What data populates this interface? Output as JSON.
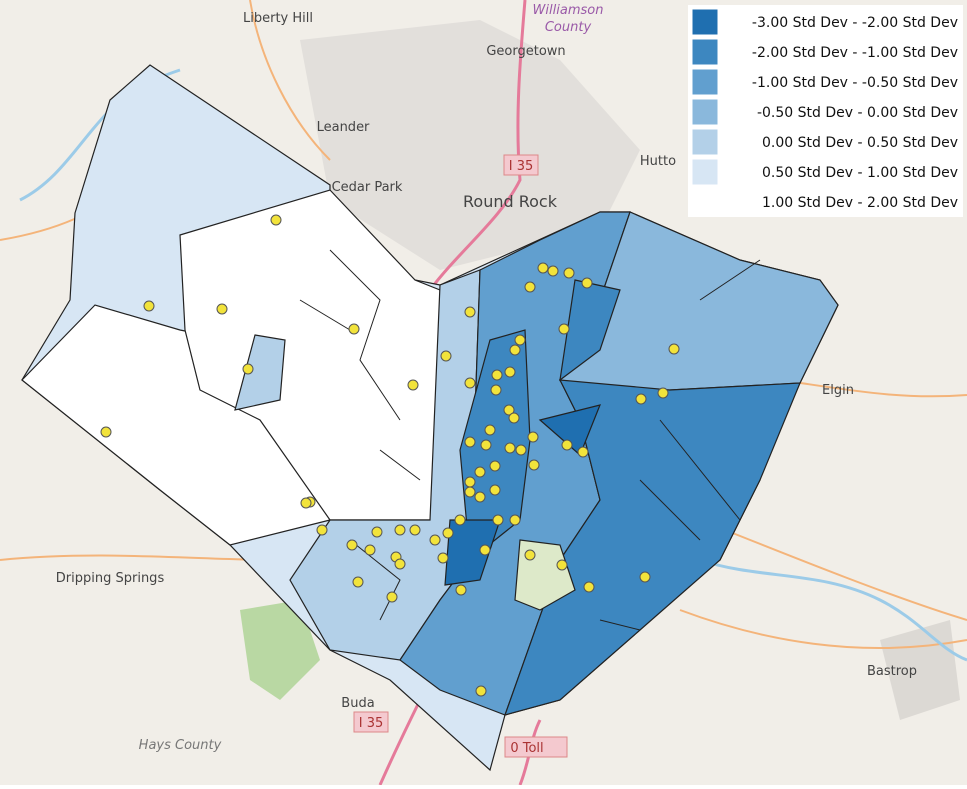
{
  "map": {
    "legend": [
      {
        "label": "-3.00 Std Dev -  -2.00 Std Dev",
        "color": "#1f6fb0"
      },
      {
        "label": "-2.00 Std Dev -  -1.00 Std Dev",
        "color": "#3d87c0"
      },
      {
        "label": "-1.00 Std Dev -  -0.50 Std Dev",
        "color": "#619fcf"
      },
      {
        "label": "-0.50 Std Dev -  0.00 Std Dev",
        "color": "#8ab8dc"
      },
      {
        "label": "0.00 Std Dev -  0.50 Std Dev",
        "color": "#b3d0e8"
      },
      {
        "label": "0.50 Std Dev -  1.00 Std Dev",
        "color": "#d7e6f4"
      },
      {
        "label": "1.00 Std Dev -  2.00 Std Dev",
        "color": "#ffffff"
      }
    ],
    "places": [
      {
        "label": "Liberty Hill"
      },
      {
        "label": "Williamson"
      },
      {
        "label": "County"
      },
      {
        "label": "Georgetown"
      },
      {
        "label": "Leander"
      },
      {
        "label": "Cedar Park"
      },
      {
        "label": "Round Rock"
      },
      {
        "label": "Hutto"
      },
      {
        "label": "Elgin"
      },
      {
        "label": "Dripping Springs"
      },
      {
        "label": "Buda"
      },
      {
        "label": "Hays County"
      },
      {
        "label": "Bastrop"
      },
      {
        "label": "I 35"
      },
      {
        "label": "I 35"
      },
      {
        "label": "0 Toll"
      }
    ]
  }
}
